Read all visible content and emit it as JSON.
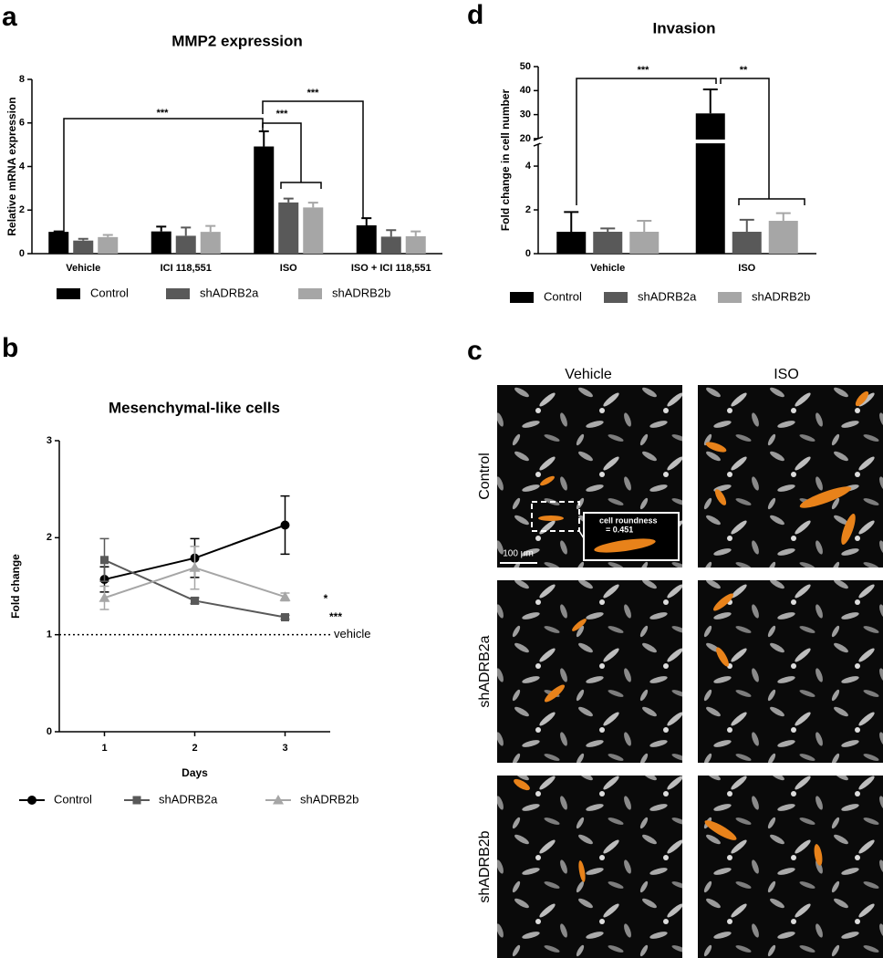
{
  "panel_labels": [
    "a",
    "b",
    "c",
    "d"
  ],
  "chart_data": [
    {
      "type": "bar",
      "title": "MMP2 expression",
      "ylabel": "Relative mRNA expression",
      "categories": [
        "Vehicle",
        "ICI 118,551",
        "ISO",
        "ISO + ICI 118,551"
      ],
      "ylim": [
        0,
        8
      ],
      "yticks": [
        0,
        2,
        4,
        6,
        8
      ],
      "series": [
        {
          "name": "Control",
          "color": "#000000",
          "values": [
            1.0,
            1.02,
            4.92,
            1.3
          ],
          "errors": [
            0.02,
            0.22,
            0.7,
            0.33
          ]
        },
        {
          "name": "shADRB2a",
          "color": "#595959",
          "values": [
            0.6,
            0.82,
            2.35,
            0.78
          ],
          "errors": [
            0.08,
            0.38,
            0.18,
            0.3
          ]
        },
        {
          "name": "shADRB2b",
          "color": "#a6a6a6",
          "values": [
            0.76,
            1.0,
            2.12,
            0.8
          ],
          "errors": [
            0.1,
            0.27,
            0.22,
            0.22
          ]
        }
      ],
      "annotations": [
        "***",
        "***",
        "***"
      ]
    },
    {
      "type": "line",
      "title": "Mesenchymal-like cells",
      "xlabel": "Days",
      "ylabel": "Fold change",
      "x": [
        1,
        2,
        3
      ],
      "xlim": [
        0.5,
        3.5
      ],
      "xticks": [
        1,
        2,
        3
      ],
      "ylim": [
        0,
        3
      ],
      "yticks": [
        0,
        1,
        2,
        3
      ],
      "series": [
        {
          "name": "Control",
          "color": "#000000",
          "marker": "circle",
          "values": [
            1.57,
            1.79,
            2.13
          ],
          "errors": [
            0.13,
            0.2,
            0.3
          ]
        },
        {
          "name": "shADRB2a",
          "color": "#595959",
          "marker": "square",
          "values": [
            1.77,
            1.35,
            1.18
          ],
          "errors": [
            0.22,
            0.03,
            0.02
          ]
        },
        {
          "name": "shADRB2b",
          "color": "#a6a6a6",
          "marker": "triangle",
          "values": [
            1.38,
            1.69,
            1.39
          ],
          "errors": [
            0.12,
            0.22,
            0.04
          ]
        }
      ],
      "reference": {
        "value": 1,
        "label": "vehicle"
      },
      "annotations": [
        "*",
        "***"
      ]
    },
    {
      "type": "bar",
      "title": "Invasion",
      "ylabel": "Fold change in cell number",
      "categories": [
        "Vehicle",
        "ISO"
      ],
      "ylim": [
        0,
        50
      ],
      "yticks": [
        0,
        2,
        4,
        20,
        30,
        40,
        50
      ],
      "axis_break": [
        5,
        20
      ],
      "series": [
        {
          "name": "Control",
          "color": "#000000",
          "values": [
            1.0,
            30.5
          ],
          "errors": [
            0.9,
            10
          ]
        },
        {
          "name": "shADRB2a",
          "color": "#595959",
          "values": [
            1.0,
            1.0
          ],
          "errors": [
            0.15,
            0.55
          ]
        },
        {
          "name": "shADRB2b",
          "color": "#a6a6a6",
          "values": [
            1.0,
            1.5
          ],
          "errors": [
            0.5,
            0.35
          ]
        }
      ],
      "annotations": [
        "***",
        "**"
      ]
    }
  ],
  "image_panel": {
    "columns": [
      "Vehicle",
      "ISO"
    ],
    "rows": [
      "Control",
      "shADRB2a",
      "shADRB2b"
    ],
    "inset_label": [
      "cell roundness",
      "= 0.451"
    ],
    "scale_bar": "100 μm"
  }
}
